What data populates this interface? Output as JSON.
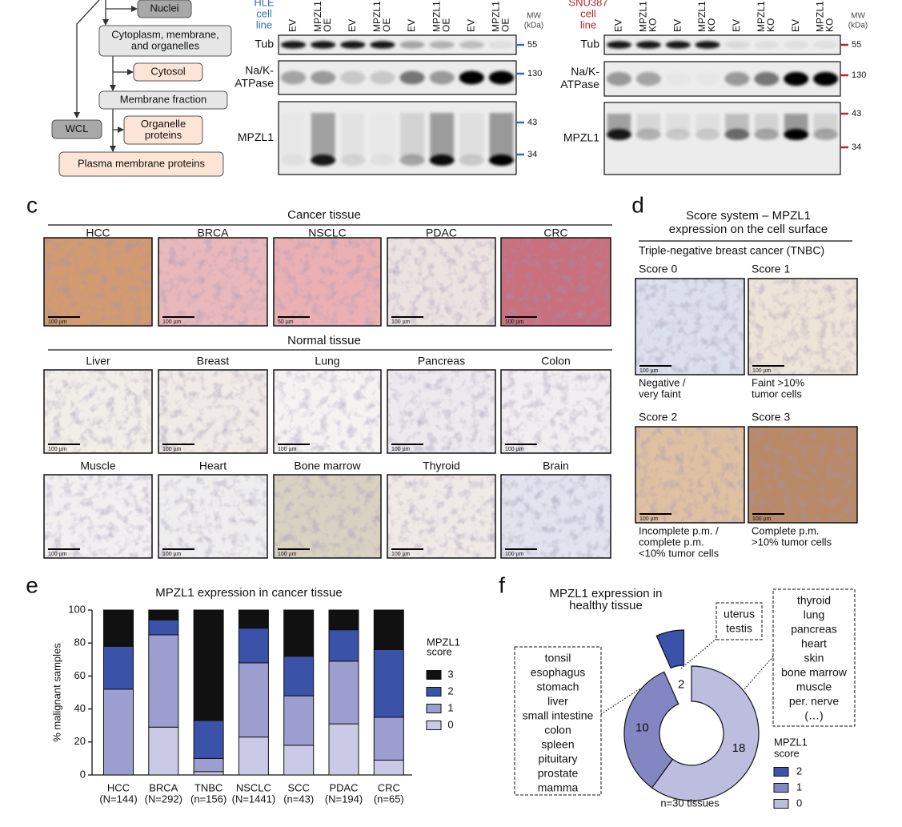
{
  "flowchart": {
    "nodes": [
      [
        "Nuclei"
      ],
      [
        "Cytoplasm, membrane,",
        "and organelles"
      ],
      [
        "Cytosol"
      ],
      [
        "Membrane fraction"
      ],
      [
        "WCL"
      ],
      [
        "Organelle",
        "proteins"
      ],
      [
        "Plasma membrane proteins"
      ]
    ]
  },
  "blots": [
    {
      "cell_line": [
        "HLE",
        "cell",
        "line"
      ],
      "lanes": [
        [
          "EV"
        ],
        [
          "MPZL1",
          "OE"
        ],
        [
          "EV"
        ],
        [
          "MPZL1",
          "OE"
        ],
        [
          "EV"
        ],
        [
          "MPZL1",
          "OE"
        ],
        [
          "EV"
        ],
        [
          "MPZL1",
          "OE"
        ]
      ],
      "rows": [
        [
          "Tub"
        ],
        [
          "Na/K-",
          "ATPase"
        ],
        [
          "MPZL1"
        ]
      ],
      "mw_title": [
        "MW",
        "(kDa)"
      ],
      "mw_markers": [
        55,
        130,
        43,
        34
      ]
    },
    {
      "cell_line": [
        "SNU387",
        "cell",
        "line"
      ],
      "lanes": [
        [
          "EV"
        ],
        [
          "MPZL1",
          "KO"
        ],
        [
          "EV"
        ],
        [
          "MPZL1",
          "KO"
        ],
        [
          "EV"
        ],
        [
          "MPZL1",
          "KO"
        ],
        [
          "EV"
        ],
        [
          "MPZL1",
          "KO"
        ]
      ],
      "rows": [
        [
          "Tub"
        ],
        [
          "Na/K-",
          "ATPase"
        ],
        [
          "MPZL1"
        ]
      ],
      "mw_title": [
        "MW",
        "(kDa)"
      ],
      "mw_markers": [
        55,
        130,
        43,
        34
      ]
    }
  ],
  "panel_c": {
    "letter": "c",
    "cancer_heading": "Cancer tissue",
    "cancer": [
      {
        "label": "HCC",
        "scale": "100 µm"
      },
      {
        "label": "BRCA",
        "scale": "100 µm"
      },
      {
        "label": "NSCLC",
        "scale": "50 µm"
      },
      {
        "label": "PDAC",
        "scale": "100 µm"
      },
      {
        "label": "CRC",
        "scale": "100 µm"
      }
    ],
    "normal_heading": "Normal tissue",
    "normal": [
      {
        "label": "Liver",
        "scale": "100 µm"
      },
      {
        "label": "Breast",
        "scale": "100 µm"
      },
      {
        "label": "Lung",
        "scale": "100 µm"
      },
      {
        "label": "Pancreas",
        "scale": "100 µm"
      },
      {
        "label": "Colon",
        "scale": "100 µm"
      },
      {
        "label": "Muscle",
        "scale": "100 µm"
      },
      {
        "label": "Heart",
        "scale": "100 µm"
      },
      {
        "label": "Bone marrow",
        "scale": "100 µm"
      },
      {
        "label": "Thyroid",
        "scale": "100 µm"
      },
      {
        "label": "Brain",
        "scale": "100 µm"
      }
    ]
  },
  "panel_d": {
    "letter": "d",
    "title": [
      "Score system – MPZL1",
      "expression on the cell surface"
    ],
    "subtitle": "Triple-negative breast cancer (TNBC)",
    "scores": [
      {
        "label": "Score 0",
        "scale": "100 µm",
        "caption": [
          "Negative /",
          "very faint"
        ]
      },
      {
        "label": "Score 1",
        "scale": "100 µm",
        "caption": [
          "Faint >10%",
          "tumor cells"
        ]
      },
      {
        "label": "Score 2",
        "scale": "100 µm",
        "caption": [
          "Incomplete p.m. /",
          "complete p.m.",
          "<10% tumor cells"
        ]
      },
      {
        "label": "Score 3",
        "scale": "100 µm",
        "caption": [
          "Complete p.m.",
          ">10% tumor cells"
        ]
      }
    ]
  },
  "chart_data": [
    {
      "type": "bar",
      "stacked": true,
      "panel": "e",
      "title": "MPZL1 expression in cancer tissue",
      "ylabel": "% malignant samples",
      "categories": [
        "HCC",
        "BRCA",
        "TNBC",
        "NSCLC",
        "SCC",
        "PDAC",
        "CRC"
      ],
      "category_notes": [
        "(N=144)",
        "(N=292)",
        "(n=156)",
        "(N=1441)",
        "(n=43)",
        "(N=194)",
        "(n=65)"
      ],
      "series": [
        {
          "name": "3",
          "color": "#111111",
          "values": [
            22,
            6,
            67,
            11,
            28,
            12,
            24
          ]
        },
        {
          "name": "2",
          "color": "#3a52a8",
          "values": [
            26,
            9,
            23,
            21,
            24,
            19,
            41
          ]
        },
        {
          "name": "1",
          "color": "#9c9ecf",
          "values": [
            52,
            56,
            8,
            45,
            30,
            38,
            26
          ]
        },
        {
          "name": "0",
          "color": "#cacae6",
          "values": [
            0,
            29,
            2,
            23,
            18,
            31,
            9
          ]
        }
      ],
      "ylim": [
        0,
        100
      ],
      "yticks": [
        0,
        20,
        40,
        60,
        80,
        100
      ],
      "legend_title": [
        "MPZL1",
        "score"
      ]
    },
    {
      "type": "pie",
      "donut": true,
      "panel": "f",
      "title": [
        "MPZL1 expression in",
        "healthy tissue"
      ],
      "categories": [
        "2",
        "1",
        "0"
      ],
      "values": [
        2,
        10,
        18
      ],
      "colors": [
        "#3a52a8",
        "#8386c2",
        "#bdbde0"
      ],
      "exploded": "2",
      "callouts": [
        [
          "uterus",
          "testis"
        ],
        [
          "tonsil",
          "esophagus",
          "stomach",
          "liver",
          "small intestine",
          "colon",
          "spleen",
          "pituitary",
          "prostate",
          "mamma"
        ],
        [
          "thyroid",
          "lung",
          "pancreas",
          "heart",
          "skin",
          "bone marrow",
          "muscle",
          "per. nerve",
          "(…)"
        ]
      ],
      "note": "n=30 tissues",
      "legend_title": [
        "MPZL1",
        "score"
      ]
    }
  ]
}
